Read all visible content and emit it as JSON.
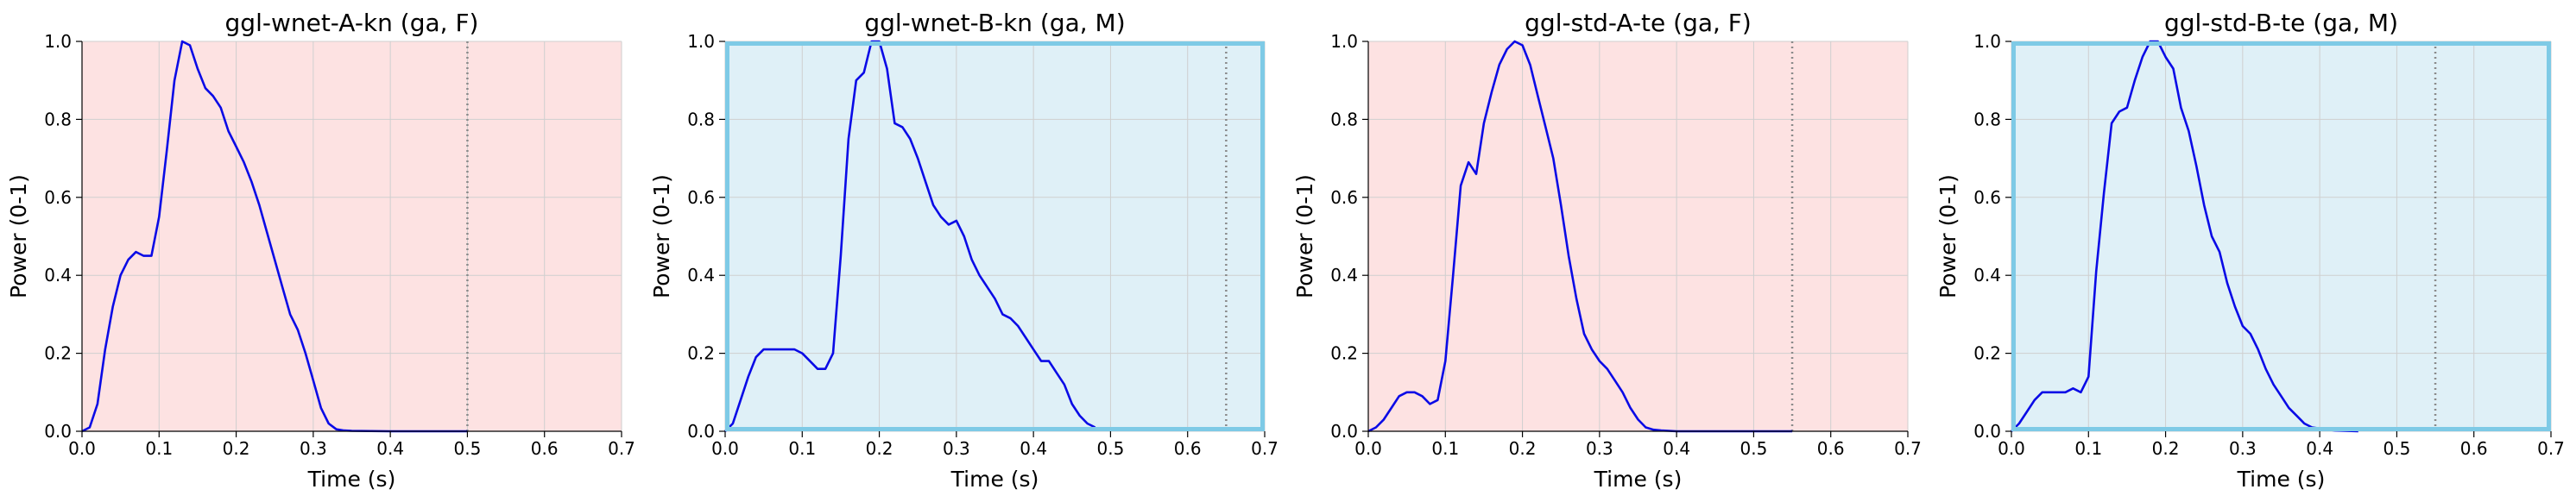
{
  "figure": {
    "x_ticks": [
      0.0,
      0.1,
      0.2,
      0.3,
      0.4,
      0.5,
      0.6,
      0.7
    ],
    "y_ticks": [
      0.0,
      0.2,
      0.4,
      0.6,
      0.8,
      1.0
    ],
    "x_tick_labels": [
      "0.0",
      "0.1",
      "0.2",
      "0.3",
      "0.4",
      "0.5",
      "0.6",
      "0.7"
    ],
    "y_tick_labels": [
      "0.0",
      "0.2",
      "0.4",
      "0.6",
      "0.8",
      "1.0"
    ],
    "colors": {
      "female_background": "#fde2e2",
      "male_background": "#dff0f7",
      "male_border": "#7ecae6",
      "line": "#0a0ae6",
      "marker_line": "#8a8a8a",
      "grid": "#cfcfcf"
    }
  },
  "chart_data": [
    {
      "type": "line",
      "title": "ggl-wnet-A-kn (ga, F)",
      "xlabel": "Time (s)",
      "ylabel": "Power (0-1)",
      "xlim": [
        0,
        0.7
      ],
      "ylim": [
        0,
        1
      ],
      "grid": true,
      "speaker_gender": "F",
      "end_marker_x": 0.5,
      "series": [
        {
          "x": [
            0.0,
            0.01,
            0.02,
            0.03,
            0.04,
            0.05,
            0.06,
            0.07,
            0.08,
            0.09,
            0.1,
            0.11,
            0.12,
            0.13,
            0.14,
            0.15,
            0.16,
            0.17,
            0.18,
            0.19,
            0.2,
            0.21,
            0.22,
            0.23,
            0.24,
            0.25,
            0.26,
            0.27,
            0.28,
            0.29,
            0.3,
            0.31,
            0.32,
            0.33,
            0.34,
            0.35,
            0.4,
            0.45,
            0.5
          ],
          "y": [
            0.0,
            0.01,
            0.07,
            0.21,
            0.32,
            0.4,
            0.44,
            0.46,
            0.45,
            0.45,
            0.55,
            0.72,
            0.9,
            1.0,
            0.99,
            0.93,
            0.88,
            0.86,
            0.83,
            0.77,
            0.73,
            0.69,
            0.64,
            0.58,
            0.51,
            0.44,
            0.37,
            0.3,
            0.26,
            0.2,
            0.13,
            0.06,
            0.02,
            0.005,
            0.002,
            0.001,
            0.0,
            0.0,
            0.0
          ]
        }
      ]
    },
    {
      "type": "line",
      "title": "ggl-wnet-B-kn (ga, M)",
      "xlabel": "Time (s)",
      "ylabel": "Power (0-1)",
      "xlim": [
        0,
        0.7
      ],
      "ylim": [
        0,
        1
      ],
      "grid": true,
      "speaker_gender": "M",
      "end_marker_x": 0.65,
      "series": [
        {
          "x": [
            0.0,
            0.01,
            0.02,
            0.03,
            0.04,
            0.05,
            0.06,
            0.07,
            0.08,
            0.09,
            0.1,
            0.11,
            0.12,
            0.13,
            0.14,
            0.15,
            0.16,
            0.17,
            0.18,
            0.19,
            0.2,
            0.21,
            0.22,
            0.23,
            0.24,
            0.25,
            0.26,
            0.27,
            0.28,
            0.29,
            0.3,
            0.31,
            0.32,
            0.33,
            0.34,
            0.35,
            0.36,
            0.37,
            0.38,
            0.39,
            0.4,
            0.41,
            0.42,
            0.43,
            0.44,
            0.45,
            0.46,
            0.47,
            0.48
          ],
          "y": [
            0.0,
            0.02,
            0.08,
            0.14,
            0.19,
            0.21,
            0.21,
            0.21,
            0.21,
            0.21,
            0.2,
            0.18,
            0.16,
            0.16,
            0.2,
            0.45,
            0.75,
            0.9,
            0.92,
            1.0,
            1.0,
            0.93,
            0.79,
            0.78,
            0.75,
            0.7,
            0.64,
            0.58,
            0.55,
            0.53,
            0.54,
            0.5,
            0.44,
            0.4,
            0.37,
            0.34,
            0.3,
            0.29,
            0.27,
            0.24,
            0.21,
            0.18,
            0.18,
            0.15,
            0.12,
            0.07,
            0.04,
            0.02,
            0.01
          ]
        }
      ]
    },
    {
      "type": "line",
      "title": "ggl-std-A-te (ga, F)",
      "xlabel": "Time (s)",
      "ylabel": "Power (0-1)",
      "xlim": [
        0,
        0.7
      ],
      "ylim": [
        0,
        1
      ],
      "grid": true,
      "speaker_gender": "F",
      "end_marker_x": 0.55,
      "series": [
        {
          "x": [
            0.0,
            0.01,
            0.02,
            0.03,
            0.04,
            0.05,
            0.06,
            0.07,
            0.08,
            0.09,
            0.1,
            0.11,
            0.12,
            0.13,
            0.14,
            0.15,
            0.16,
            0.17,
            0.18,
            0.19,
            0.2,
            0.21,
            0.22,
            0.23,
            0.24,
            0.25,
            0.26,
            0.27,
            0.28,
            0.29,
            0.3,
            0.31,
            0.32,
            0.33,
            0.34,
            0.35,
            0.36,
            0.37,
            0.38,
            0.39,
            0.4,
            0.45,
            0.5,
            0.55
          ],
          "y": [
            0.0,
            0.01,
            0.03,
            0.06,
            0.09,
            0.1,
            0.1,
            0.09,
            0.07,
            0.08,
            0.18,
            0.4,
            0.63,
            0.69,
            0.66,
            0.79,
            0.87,
            0.94,
            0.98,
            1.0,
            0.99,
            0.94,
            0.86,
            0.78,
            0.7,
            0.58,
            0.45,
            0.34,
            0.25,
            0.21,
            0.18,
            0.16,
            0.13,
            0.1,
            0.06,
            0.03,
            0.01,
            0.004,
            0.002,
            0.001,
            0.0,
            0.0,
            0.0,
            0.0
          ]
        }
      ]
    },
    {
      "type": "line",
      "title": "ggl-std-B-te (ga, M)",
      "xlabel": "Time (s)",
      "ylabel": "Power (0-1)",
      "xlim": [
        0,
        0.7
      ],
      "ylim": [
        0,
        1
      ],
      "grid": true,
      "speaker_gender": "M",
      "end_marker_x": 0.55,
      "series": [
        {
          "x": [
            0.0,
            0.01,
            0.02,
            0.03,
            0.04,
            0.05,
            0.06,
            0.07,
            0.08,
            0.09,
            0.1,
            0.11,
            0.12,
            0.13,
            0.14,
            0.15,
            0.16,
            0.17,
            0.18,
            0.19,
            0.2,
            0.21,
            0.22,
            0.23,
            0.24,
            0.25,
            0.26,
            0.27,
            0.28,
            0.29,
            0.3,
            0.31,
            0.32,
            0.33,
            0.34,
            0.35,
            0.36,
            0.37,
            0.38,
            0.39,
            0.4,
            0.41,
            0.42,
            0.45
          ],
          "y": [
            0.0,
            0.02,
            0.05,
            0.08,
            0.1,
            0.1,
            0.1,
            0.1,
            0.11,
            0.1,
            0.14,
            0.41,
            0.61,
            0.79,
            0.82,
            0.83,
            0.9,
            0.96,
            1.0,
            1.0,
            0.96,
            0.93,
            0.83,
            0.77,
            0.68,
            0.58,
            0.5,
            0.46,
            0.38,
            0.32,
            0.27,
            0.25,
            0.21,
            0.16,
            0.12,
            0.09,
            0.06,
            0.04,
            0.02,
            0.01,
            0.007,
            0.004,
            0.002,
            0.0
          ]
        }
      ]
    }
  ]
}
